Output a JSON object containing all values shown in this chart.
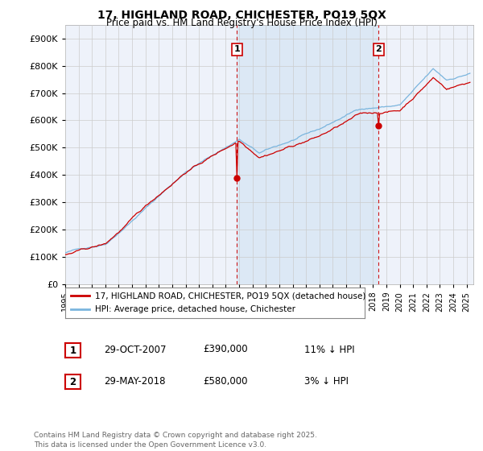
{
  "title_line1": "17, HIGHLAND ROAD, CHICHESTER, PO19 5QX",
  "title_line2": "Price paid vs. HM Land Registry's House Price Index (HPI)",
  "background_color": "#ffffff",
  "plot_bg_color": "#eef2fa",
  "highlight_color": "#dce8f5",
  "hpi_color": "#7ab5de",
  "price_color": "#cc0000",
  "vline_color": "#cc0000",
  "grid_color": "#cccccc",
  "sale1_date_num": 2007.83,
  "sale1_label": "1",
  "sale1_price": 390000,
  "sale1_text": "29-OCT-2007",
  "sale1_pct": "11% ↓ HPI",
  "sale2_date_num": 2018.42,
  "sale2_label": "2",
  "sale2_price": 580000,
  "sale2_text": "29-MAY-2018",
  "sale2_pct": "3% ↓ HPI",
  "xmin": 1995.0,
  "xmax": 2025.5,
  "ymin": 0,
  "ymax": 950000,
  "legend_label1": "17, HIGHLAND ROAD, CHICHESTER, PO19 5QX (detached house)",
  "legend_label2": "HPI: Average price, detached house, Chichester",
  "footnote": "Contains HM Land Registry data © Crown copyright and database right 2025.\nThis data is licensed under the Open Government Licence v3.0."
}
